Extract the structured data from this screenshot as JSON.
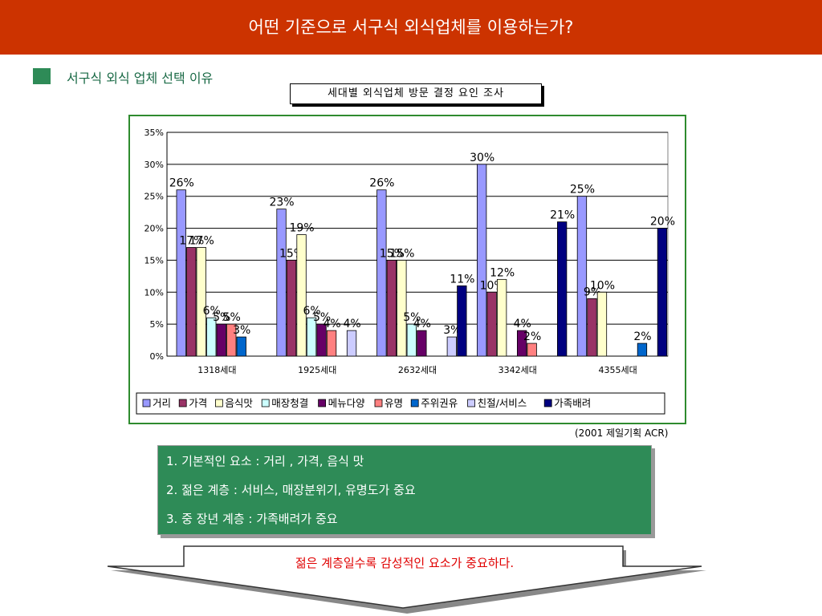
{
  "header": {
    "title": "어떤 기준으로 서구식 외식업체를 이용하는가?"
  },
  "section": {
    "label": "서구식 외식 업체 선택 이유"
  },
  "chart_caption": "세대별 외식업체 방문 결정 요인 조사",
  "source_note": "(2001 제일기획 ACR)",
  "summary": {
    "lines": [
      "1. 기본적인 요소 : 거리 , 가격, 음식 맛",
      "2. 젊은 계층 :  서비스, 매장분위기, 유명도가 중요",
      "3. 중 장년 계층 :  가족배려가 중요"
    ]
  },
  "conclusion": "젊은 계층일수록  감성적인 요소가 중요하다.",
  "colors": {
    "header_bg": "#cc3300",
    "accent_green": "#2e8b57",
    "conclusion_red": "#e00000"
  },
  "chart_data": {
    "type": "bar",
    "categories": [
      "1318세대",
      "1925세대",
      "2632세대",
      "3342세대",
      "4355세대"
    ],
    "ylim": [
      0,
      35
    ],
    "yticks": [
      "0%",
      "5%",
      "10%",
      "15%",
      "20%",
      "25%",
      "30%",
      "35%"
    ],
    "grid": true,
    "legend_position": "bottom",
    "value_suffix": "%",
    "series": [
      {
        "name": "거리",
        "color": "#9999ff",
        "values": [
          26,
          23,
          26,
          30,
          25
        ]
      },
      {
        "name": "가격",
        "color": "#993366",
        "values": [
          17,
          15,
          15,
          10,
          9
        ]
      },
      {
        "name": "음식맛",
        "color": "#ffffcc",
        "values": [
          17,
          19,
          15,
          12,
          10
        ]
      },
      {
        "name": "매장청결",
        "color": "#ccffff",
        "values": [
          6,
          6,
          5,
          null,
          null
        ]
      },
      {
        "name": "메뉴다양",
        "color": "#660066",
        "values": [
          5,
          5,
          4,
          4,
          null
        ]
      },
      {
        "name": "유명",
        "color": "#ff8080",
        "values": [
          5,
          4,
          null,
          2,
          null
        ]
      },
      {
        "name": "주위권유",
        "color": "#0066cc",
        "values": [
          3,
          null,
          null,
          null,
          2
        ]
      },
      {
        "name": "친절/서비스",
        "color": "#ccccff",
        "values": [
          null,
          4,
          3,
          null,
          null
        ]
      },
      {
        "name": "가족배려",
        "color": "#000080",
        "values": [
          null,
          null,
          11,
          21,
          20
        ]
      }
    ]
  }
}
